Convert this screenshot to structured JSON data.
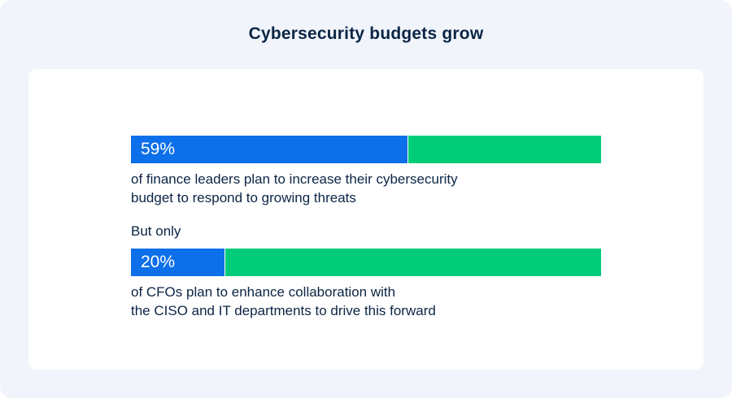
{
  "title": "Cybersecurity budgets grow",
  "bridge_text": "But only",
  "colors": {
    "page_bg": "#f1f5fb",
    "card_bg": "#ffffff",
    "highlight": "#0d6fe9",
    "remainder": "#00cc7a",
    "text": "#0b2545"
  },
  "chart_data": {
    "type": "bar",
    "orientation": "horizontal-stacked",
    "title": "Cybersecurity budgets grow",
    "categories": [
      "of finance leaders plan to increase their cybersecurity budget to respond to growing threats",
      "of CFOs plan to enhance collaboration with the CISO and IT departments to drive this forward"
    ],
    "values": [
      59,
      20
    ],
    "unit": "%",
    "ylim": [
      0,
      100
    ]
  },
  "stats": [
    {
      "label": "59%",
      "value": 59,
      "desc_lines": [
        "of finance leaders plan to increase their cybersecurity",
        "budget to respond to growing threats"
      ]
    },
    {
      "label": "20%",
      "value": 20,
      "desc_lines": [
        "of CFOs plan to enhance collaboration with",
        "the CISO and IT departments to drive this forward"
      ]
    }
  ]
}
